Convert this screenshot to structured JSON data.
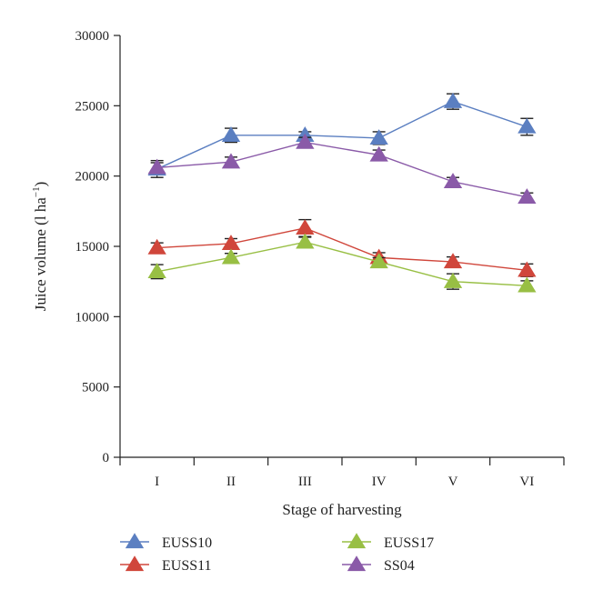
{
  "chart_data": {
    "type": "line",
    "xlabel": "Stage of harvesting",
    "ylabel": "Juice volume (l ha",
    "ylabel_superscript": "−1",
    "ylabel_close": ")",
    "categories": [
      "I",
      "II",
      "III",
      "IV",
      "V",
      "VI"
    ],
    "ylim": [
      0,
      30000
    ],
    "yticks": [
      0,
      5000,
      10000,
      15000,
      20000,
      25000,
      30000
    ],
    "grid": false,
    "legend_position": "bottom",
    "error_bars": true,
    "series": [
      {
        "name": "EUSS10",
        "color": "#5b7fc1",
        "marker": "triangle",
        "values": [
          20500,
          22900,
          22900,
          22700,
          25300,
          23500
        ],
        "errors": [
          600,
          500,
          250,
          450,
          550,
          600
        ]
      },
      {
        "name": "EUSS11",
        "color": "#d0463b",
        "marker": "triangle",
        "values": [
          14900,
          15200,
          16300,
          14200,
          13900,
          13300
        ],
        "errors": [
          350,
          350,
          600,
          350,
          350,
          450
        ]
      },
      {
        "name": "EUSS17",
        "color": "#98bf44",
        "marker": "triangle",
        "values": [
          13200,
          14200,
          15300,
          13900,
          12500,
          12200
        ],
        "errors": [
          500,
          300,
          350,
          300,
          550,
          350
        ]
      },
      {
        "name": "SS04",
        "color": "#8a5aa8",
        "marker": "triangle",
        "values": [
          20600,
          21000,
          22400,
          21500,
          19600,
          18500
        ],
        "errors": [
          350,
          350,
          350,
          350,
          300,
          300
        ]
      }
    ]
  }
}
